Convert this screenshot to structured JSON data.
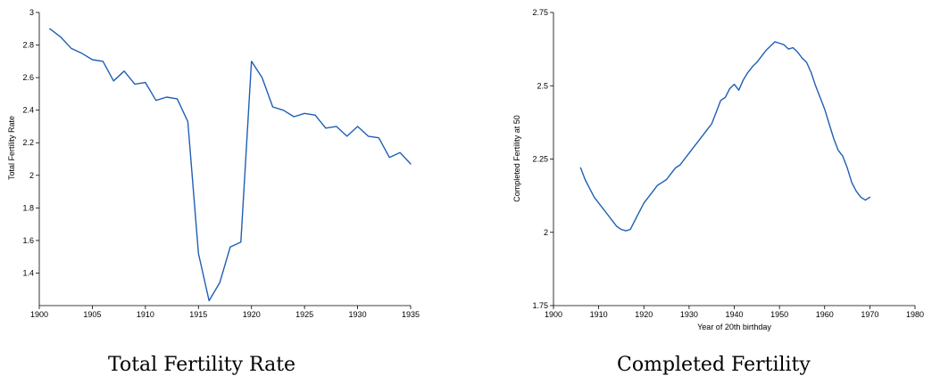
{
  "chart_data": [
    {
      "type": "line",
      "title": "",
      "xlabel": "",
      "ylabel": "Total Fertility Rate",
      "xlim": [
        1900,
        1935
      ],
      "ylim": [
        1.2,
        3.0
      ],
      "xticks": [
        1900,
        1905,
        1910,
        1915,
        1920,
        1925,
        1930,
        1935
      ],
      "yticks": [
        1.4,
        1.6,
        1.8,
        2,
        2.2,
        2.4,
        2.6,
        2.8,
        3
      ],
      "grid": false,
      "line_color": "#1f5fb4",
      "series": [
        {
          "x": [
            1901,
            1902,
            1903,
            1904,
            1905,
            1906,
            1907,
            1908,
            1909,
            1910,
            1911,
            1912,
            1913,
            1914,
            1915,
            1916,
            1917,
            1918,
            1919,
            1920,
            1921,
            1922,
            1923,
            1924,
            1925,
            1926,
            1927,
            1928,
            1929,
            1930,
            1931,
            1932,
            1933,
            1934,
            1935
          ],
          "values": [
            2.9,
            2.85,
            2.78,
            2.75,
            2.71,
            2.7,
            2.58,
            2.64,
            2.56,
            2.57,
            2.46,
            2.48,
            2.47,
            2.33,
            1.52,
            1.23,
            1.34,
            1.56,
            1.59,
            2.7,
            2.6,
            2.42,
            2.4,
            2.36,
            2.38,
            2.37,
            2.29,
            2.3,
            2.24,
            2.3,
            2.24,
            2.23,
            2.11,
            2.14,
            2.07
          ]
        }
      ]
    },
    {
      "type": "line",
      "title": "",
      "xlabel": "Year of 20th birthday",
      "ylabel": "Completed Fertility at 50",
      "xlim": [
        1900,
        1980
      ],
      "ylim": [
        1.75,
        2.75
      ],
      "xticks": [
        1900,
        1910,
        1920,
        1930,
        1940,
        1950,
        1960,
        1970,
        1980
      ],
      "yticks": [
        1.75,
        2,
        2.25,
        2.5,
        2.75
      ],
      "ytick_labels": [
        "1.75",
        "2",
        "2.25",
        "2.5",
        "2.75"
      ],
      "grid": false,
      "line_color": "#1f5fb4",
      "series": [
        {
          "x": [
            1906,
            1907,
            1908,
            1909,
            1910,
            1911,
            1912,
            1913,
            1914,
            1915,
            1916,
            1917,
            1918,
            1919,
            1920,
            1921,
            1922,
            1923,
            1924,
            1925,
            1926,
            1927,
            1928,
            1929,
            1930,
            1931,
            1932,
            1933,
            1934,
            1935,
            1936,
            1937,
            1938,
            1939,
            1940,
            1941,
            1942,
            1943,
            1944,
            1945,
            1946,
            1947,
            1948,
            1949,
            1950,
            1951,
            1952,
            1953,
            1954,
            1955,
            1956,
            1957,
            1958,
            1959,
            1960,
            1961,
            1962,
            1963,
            1964,
            1965,
            1966,
            1967,
            1968,
            1969,
            1970
          ],
          "values": [
            2.22,
            2.18,
            2.15,
            2.12,
            2.1,
            2.08,
            2.06,
            2.04,
            2.02,
            2.01,
            2.005,
            2.01,
            2.04,
            2.07,
            2.1,
            2.12,
            2.14,
            2.16,
            2.17,
            2.18,
            2.2,
            2.22,
            2.23,
            2.25,
            2.27,
            2.29,
            2.31,
            2.33,
            2.35,
            2.37,
            2.41,
            2.45,
            2.46,
            2.49,
            2.505,
            2.485,
            2.52,
            2.545,
            2.565,
            2.58,
            2.6,
            2.62,
            2.635,
            2.65,
            2.645,
            2.64,
            2.625,
            2.63,
            2.615,
            2.595,
            2.58,
            2.545,
            2.5,
            2.46,
            2.42,
            2.37,
            2.32,
            2.28,
            2.26,
            2.22,
            2.17,
            2.14,
            2.12,
            2.11,
            2.12
          ]
        }
      ]
    }
  ],
  "captions": {
    "left": "Total Fertility Rate",
    "right": "Completed Fertility"
  }
}
